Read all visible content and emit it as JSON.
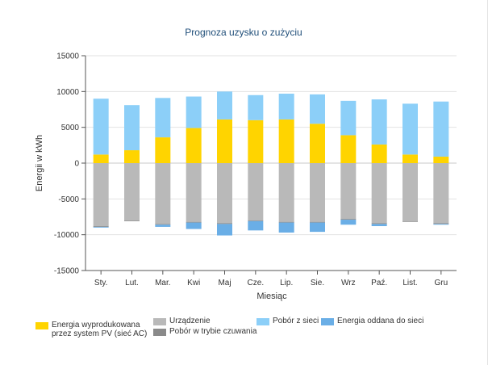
{
  "chart_data": {
    "type": "bar",
    "title": "Prognoza uzysku o zużyciu",
    "xlabel": "Miesiąc",
    "ylabel": "Energii w kWh",
    "ylim": [
      -15000,
      15000
    ],
    "yticks": [
      15000,
      10000,
      5000,
      0,
      -5000,
      -10000,
      -15000
    ],
    "categories": [
      "Sty.",
      "Lut.",
      "Mar.",
      "Kwi",
      "Maj",
      "Cze.",
      "Lip.",
      "Sie.",
      "Wrz",
      "Paź.",
      "List.",
      "Gru"
    ],
    "grid": true,
    "legend_position": "bottom",
    "series": [
      {
        "key": "pv",
        "name": "Energia wyprodukowana przez system PV (sieć AC)",
        "color": "#ffd400",
        "stack": "positive",
        "values": [
          1200,
          1800,
          3600,
          4900,
          6100,
          6000,
          6100,
          5500,
          3900,
          2600,
          1200,
          900
        ]
      },
      {
        "key": "grid_draw",
        "name": "Pobór z sieci",
        "color": "#8ccff8",
        "stack": "positive",
        "values": [
          7800,
          6300,
          5500,
          4400,
          3900,
          3500,
          3600,
          4100,
          4800,
          6300,
          7100,
          7700
        ]
      },
      {
        "key": "device",
        "name": "Urządzenie",
        "color": "#b9b9b9",
        "stack": "negative",
        "values": [
          -8800,
          -8000,
          -8500,
          -8200,
          -8400,
          -8000,
          -8200,
          -8200,
          -7800,
          -8400,
          -8100,
          -8400
        ]
      },
      {
        "key": "standby",
        "name": "Pobór w trybie czuwania",
        "color": "#8a8a8a",
        "stack": "negative",
        "values": [
          -100,
          -100,
          -100,
          -100,
          -100,
          -100,
          -100,
          -100,
          -100,
          -100,
          -100,
          -100
        ]
      },
      {
        "key": "feed_in",
        "name": "Energia oddana do sieci",
        "color": "#6aaee6",
        "stack": "negative",
        "values": [
          -100,
          0,
          -300,
          -900,
          -1600,
          -1300,
          -1400,
          -1300,
          -700,
          -300,
          0,
          -100
        ]
      }
    ]
  },
  "legend": {
    "pv_label": "Energia wyprodukowana przez system PV (sieć AC)",
    "device_label": "Urządzenie",
    "standby_label": "Pobór w trybie czuwania",
    "grid_draw_label": "Pobór z sieci",
    "feed_in_label": "Energia oddana do sieci",
    "colors": {
      "pv": "#ffd400",
      "device": "#b9b9b9",
      "standby": "#8a8a8a",
      "grid_draw": "#8ccff8",
      "feed_in": "#6aaee6"
    }
  }
}
